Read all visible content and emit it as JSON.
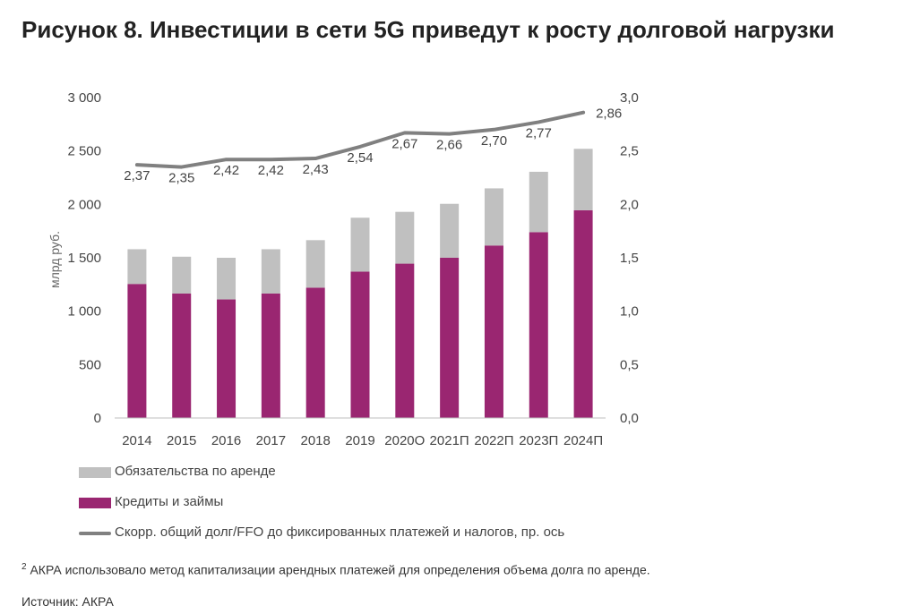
{
  "title": "Рисунок 8. Инвестиции в сети 5G приведут к росту долговой нагрузки",
  "footnote": {
    "marker": "2",
    "text": " АКРА использовало метод капитализации арендных платежей для определения объема долга по аренде."
  },
  "source": "Источник: АКРА",
  "colors": {
    "leases": "#c0c0c0",
    "loans": "#9a2671",
    "ratio": "#808080"
  },
  "chart_data": {
    "type": "bar",
    "stacked": true,
    "categories": [
      "2014",
      "2015",
      "2016",
      "2017",
      "2018",
      "2019",
      "2020О",
      "2021П",
      "2022П",
      "2023П",
      "2024П"
    ],
    "series": [
      {
        "name": "Кредиты и займы",
        "axis": "left",
        "values": [
          1255,
          1165,
          1110,
          1165,
          1220,
          1370,
          1445,
          1500,
          1615,
          1740,
          1945
        ]
      },
      {
        "name": "Обязательства по аренде",
        "axis": "left",
        "values": [
          325,
          345,
          390,
          415,
          445,
          505,
          485,
          505,
          535,
          565,
          575
        ]
      },
      {
        "name": "Скорр. общий долг/FFO до фиксированных платежей и налогов, пр. ось",
        "axis": "right",
        "type": "line",
        "values": [
          2.37,
          2.35,
          2.42,
          2.42,
          2.43,
          2.54,
          2.67,
          2.66,
          2.7,
          2.77,
          2.86
        ],
        "labels": [
          "2,37",
          "2,35",
          "2,42",
          "2,42",
          "2,43",
          "2,54",
          "2,67",
          "2,66",
          "2,70",
          "2,77",
          "2,86"
        ]
      }
    ],
    "ylabel": "млрд руб.",
    "ylim": [
      0,
      3000
    ],
    "yticks": [
      "0",
      "500",
      "1 000",
      "1 500",
      "2 000",
      "2 500",
      "3 000"
    ],
    "y2lim": [
      0,
      3.0
    ],
    "y2ticks": [
      "0,0",
      "0,5",
      "1,0",
      "1,5",
      "2,0",
      "2,5",
      "3,0"
    ],
    "legend_position": "bottom",
    "legend": [
      "Обязательства по аренде",
      "Кредиты и займы",
      "Скорр. общий долг/FFO до фиксированных платежей и налогов, пр. ось"
    ],
    "grid": false
  }
}
